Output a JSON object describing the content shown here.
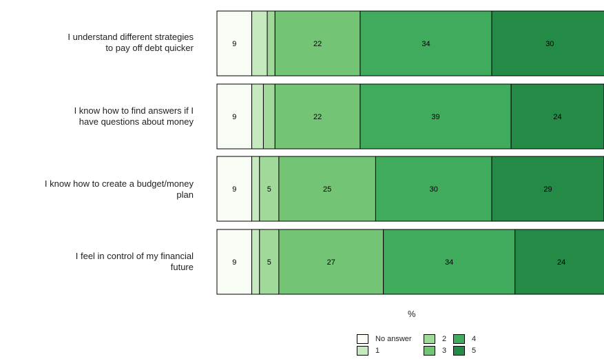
{
  "chart_data": {
    "type": "bar",
    "orientation": "horizontal",
    "stacked": true,
    "xlabel": "%",
    "categories": [
      "I understand different strategies to pay off debt quicker",
      "I know how to find answers if I have questions about money",
      "I know how to create a budget/money plan",
      "I feel in control of my financial future"
    ],
    "category_lines": [
      [
        "I understand different strategies",
        "to pay off debt quicker"
      ],
      [
        "I know how to find answers if I",
        "have questions about money"
      ],
      [
        "I know how to create a budget/money",
        "plan"
      ],
      [
        "I feel in control of my financial",
        "future"
      ]
    ],
    "series": [
      {
        "name": "No answer",
        "color": "#f7fcf5",
        "values": [
          9,
          9,
          9,
          9
        ],
        "labels": [
          "9",
          "9",
          "9",
          "9"
        ]
      },
      {
        "name": "1",
        "color": "#c7e9c0",
        "values": [
          4,
          3,
          2,
          2
        ],
        "labels": [
          "",
          "",
          "",
          ""
        ]
      },
      {
        "name": "2",
        "color": "#a1d99b",
        "values": [
          2,
          3,
          5,
          5
        ],
        "labels": [
          "",
          "",
          "5",
          "5"
        ]
      },
      {
        "name": "3",
        "color": "#74c476",
        "values": [
          22,
          22,
          25,
          27
        ],
        "labels": [
          "22",
          "22",
          "25",
          "27"
        ]
      },
      {
        "name": "4",
        "color": "#41ab5d",
        "values": [
          34,
          39,
          30,
          34
        ],
        "labels": [
          "34",
          "39",
          "30",
          "34"
        ]
      },
      {
        "name": "5",
        "color": "#238b45",
        "values": [
          30,
          24,
          29,
          24
        ],
        "labels": [
          "30",
          "24",
          "29",
          "24"
        ]
      }
    ],
    "xlim": [
      0,
      100
    ],
    "grid": false,
    "legend_position": "bottom"
  }
}
